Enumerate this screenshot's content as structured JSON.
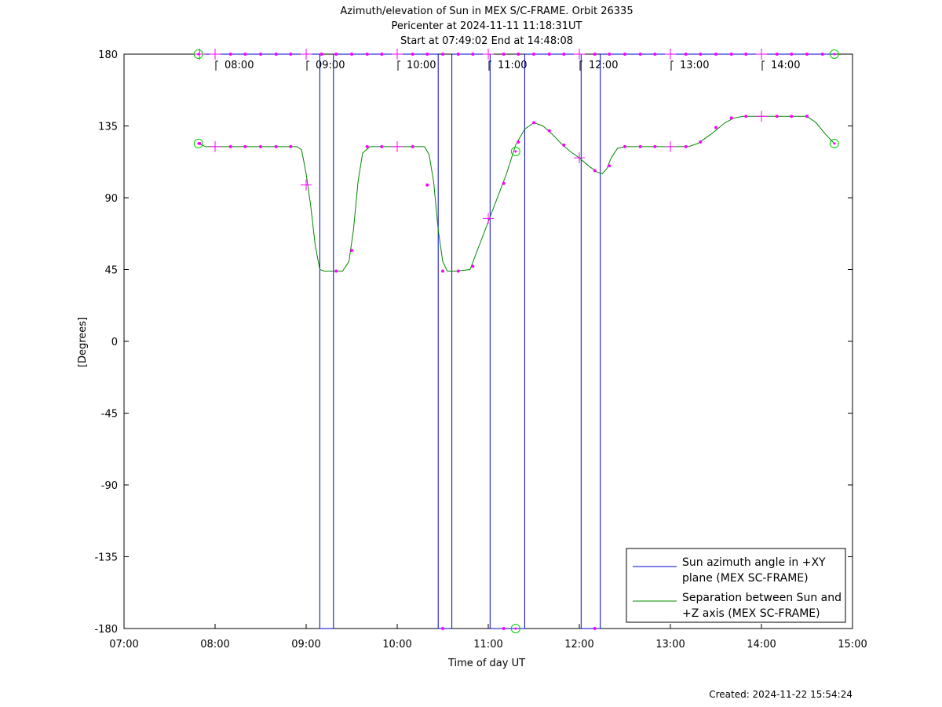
{
  "chart_data": {
    "type": "line",
    "title_lines": [
      "Azimuth/elevation of Sun in MEX S/C-FRAME.  Orbit 26335",
      "Pericenter at 2024-11-11 11:18:31UT",
      "Start at 07:49:02 End at 14:48:08"
    ],
    "xlabel": "Time of day UT",
    "ylabel": "[Degrees]",
    "footer": "Created: 2024-11-22 15:54:24",
    "xlim": [
      7.0,
      15.0
    ],
    "ylim": [
      -180,
      180
    ],
    "x_ticks": [
      7,
      8,
      9,
      10,
      11,
      12,
      13,
      14,
      15
    ],
    "x_tick_labels": [
      "07:00",
      "08:00",
      "09:00",
      "10:00",
      "11:00",
      "12:00",
      "13:00",
      "14:00",
      "15:00"
    ],
    "y_ticks": [
      180,
      135,
      90,
      45,
      0,
      -45,
      -90,
      -135,
      -180
    ],
    "y_tick_labels": [
      "180",
      "135",
      "90",
      "45",
      "0",
      "-45",
      "-90",
      "-135",
      "-180"
    ],
    "hour_markers": [
      {
        "x": 8.0,
        "label": "08:00"
      },
      {
        "x": 9.0,
        "label": "09:00"
      },
      {
        "x": 10.0,
        "label": "10:00"
      },
      {
        "x": 11.0,
        "label": "11:00"
      },
      {
        "x": 12.0,
        "label": "12:00"
      },
      {
        "x": 13.0,
        "label": "13:00"
      },
      {
        "x": 14.0,
        "label": "14:00"
      }
    ],
    "legend_position": "bottom-right",
    "series": [
      {
        "name": "Sun azimuth angle in +XY plane (MEX SC-FRAME)",
        "legend_lines": [
          "Sun azimuth angle in +XY",
          "plane (MEX SC-FRAME)"
        ],
        "color": "#0000cc",
        "points": [
          [
            7.817,
            180
          ],
          [
            9.15,
            180
          ],
          [
            9.15,
            -180
          ],
          [
            9.3,
            -180
          ],
          [
            9.3,
            180
          ],
          [
            10.45,
            180
          ],
          [
            10.45,
            -180
          ],
          [
            10.6,
            -180
          ],
          [
            10.6,
            180
          ],
          [
            11.02,
            180
          ],
          [
            11.02,
            -180
          ],
          [
            11.4,
            -180
          ],
          [
            11.4,
            180
          ],
          [
            12.02,
            180
          ],
          [
            12.02,
            -180
          ],
          [
            12.23,
            -180
          ],
          [
            12.23,
            180
          ],
          [
            14.8,
            180
          ]
        ]
      },
      {
        "name": "Separation between Sun and +Z axis (MEX SC-FRAME)",
        "legend_lines": [
          "Separation between Sun and",
          "+Z axis (MEX SC-FRAME)"
        ],
        "color": "#008800",
        "points": [
          [
            7.817,
            124
          ],
          [
            7.9,
            122
          ],
          [
            8.0,
            122
          ],
          [
            8.5,
            122
          ],
          [
            8.9,
            122
          ],
          [
            8.95,
            120
          ],
          [
            9.0,
            105
          ],
          [
            9.05,
            85
          ],
          [
            9.1,
            60
          ],
          [
            9.15,
            45
          ],
          [
            9.2,
            44
          ],
          [
            9.3,
            44
          ],
          [
            9.4,
            44
          ],
          [
            9.47,
            50
          ],
          [
            9.52,
            70
          ],
          [
            9.57,
            100
          ],
          [
            9.62,
            118
          ],
          [
            9.7,
            122
          ],
          [
            10.0,
            122
          ],
          [
            10.3,
            122
          ],
          [
            10.35,
            117
          ],
          [
            10.4,
            100
          ],
          [
            10.45,
            70
          ],
          [
            10.5,
            50
          ],
          [
            10.55,
            44
          ],
          [
            10.65,
            44
          ],
          [
            10.8,
            45
          ],
          [
            10.9,
            60
          ],
          [
            11.0,
            75
          ],
          [
            11.1,
            90
          ],
          [
            11.2,
            105
          ],
          [
            11.3,
            123
          ],
          [
            11.4,
            133
          ],
          [
            11.5,
            137
          ],
          [
            11.6,
            135
          ],
          [
            11.7,
            130
          ],
          [
            11.8,
            124
          ],
          [
            11.9,
            119
          ],
          [
            12.0,
            115
          ],
          [
            12.1,
            110
          ],
          [
            12.2,
            106
          ],
          [
            12.25,
            105
          ],
          [
            12.3,
            108
          ],
          [
            12.35,
            115
          ],
          [
            12.42,
            121
          ],
          [
            12.5,
            122
          ],
          [
            13.0,
            122
          ],
          [
            13.2,
            122
          ],
          [
            13.3,
            124
          ],
          [
            13.45,
            130
          ],
          [
            13.6,
            137
          ],
          [
            13.7,
            140
          ],
          [
            13.8,
            141
          ],
          [
            14.0,
            141
          ],
          [
            14.5,
            141
          ],
          [
            14.6,
            137
          ],
          [
            14.7,
            130
          ],
          [
            14.8,
            124
          ]
        ]
      }
    ],
    "marker_color": "#ff00ff",
    "endpoint_marker_color": "#00cc00",
    "magenta_dots": [
      [
        8.17,
        180
      ],
      [
        8.33,
        180
      ],
      [
        8.5,
        180
      ],
      [
        8.67,
        180
      ],
      [
        8.83,
        180
      ],
      [
        9.17,
        180
      ],
      [
        9.33,
        180
      ],
      [
        9.5,
        180
      ],
      [
        9.67,
        180
      ],
      [
        9.83,
        180
      ],
      [
        10.17,
        180
      ],
      [
        10.33,
        180
      ],
      [
        10.5,
        180
      ],
      [
        10.67,
        180
      ],
      [
        10.83,
        180
      ],
      [
        11.17,
        180
      ],
      [
        11.33,
        180
      ],
      [
        11.5,
        180
      ],
      [
        11.67,
        180
      ],
      [
        11.83,
        180
      ],
      [
        12.17,
        180
      ],
      [
        12.33,
        180
      ],
      [
        12.5,
        180
      ],
      [
        12.67,
        180
      ],
      [
        12.83,
        180
      ],
      [
        13.17,
        180
      ],
      [
        13.33,
        180
      ],
      [
        13.5,
        180
      ],
      [
        13.67,
        180
      ],
      [
        13.83,
        180
      ],
      [
        14.17,
        180
      ],
      [
        14.33,
        180
      ],
      [
        14.5,
        180
      ],
      [
        14.67,
        180
      ],
      [
        10.5,
        -180
      ],
      [
        12.17,
        -180
      ],
      [
        11.17,
        -180
      ],
      [
        7.83,
        124
      ],
      [
        8.17,
        122
      ],
      [
        8.33,
        122
      ],
      [
        8.5,
        122
      ],
      [
        8.67,
        122
      ],
      [
        8.83,
        122
      ],
      [
        9.33,
        44
      ],
      [
        9.5,
        57
      ],
      [
        9.67,
        122
      ],
      [
        9.83,
        122
      ],
      [
        10.17,
        122
      ],
      [
        10.33,
        98
      ],
      [
        10.5,
        44
      ],
      [
        10.67,
        44
      ],
      [
        10.83,
        47
      ],
      [
        11.17,
        99
      ],
      [
        11.33,
        125
      ],
      [
        11.5,
        137
      ],
      [
        11.67,
        132
      ],
      [
        11.83,
        123
      ],
      [
        12.17,
        107
      ],
      [
        12.33,
        110
      ],
      [
        12.5,
        122
      ],
      [
        12.67,
        122
      ],
      [
        12.83,
        122
      ],
      [
        13.17,
        122
      ],
      [
        13.33,
        125
      ],
      [
        13.5,
        134
      ],
      [
        13.67,
        140
      ],
      [
        13.83,
        141
      ],
      [
        14.17,
        141
      ],
      [
        14.33,
        141
      ],
      [
        14.5,
        141
      ]
    ],
    "magenta_plus": [
      [
        7.83,
        180
      ],
      [
        8.0,
        180
      ],
      [
        9.0,
        180
      ],
      [
        10.0,
        180
      ],
      [
        11.0,
        180
      ],
      [
        12.0,
        180
      ],
      [
        13.0,
        180
      ],
      [
        14.0,
        180
      ],
      [
        8.0,
        122
      ],
      [
        9.0,
        98
      ],
      [
        10.0,
        122
      ],
      [
        11.0,
        77
      ],
      [
        12.0,
        115
      ],
      [
        13.0,
        122
      ],
      [
        14.0,
        141
      ]
    ],
    "green_circles": [
      [
        7.817,
        180
      ],
      [
        14.8,
        180
      ],
      [
        7.817,
        124
      ],
      [
        14.8,
        124
      ],
      [
        11.3,
        119
      ],
      [
        11.3,
        -180
      ]
    ]
  }
}
